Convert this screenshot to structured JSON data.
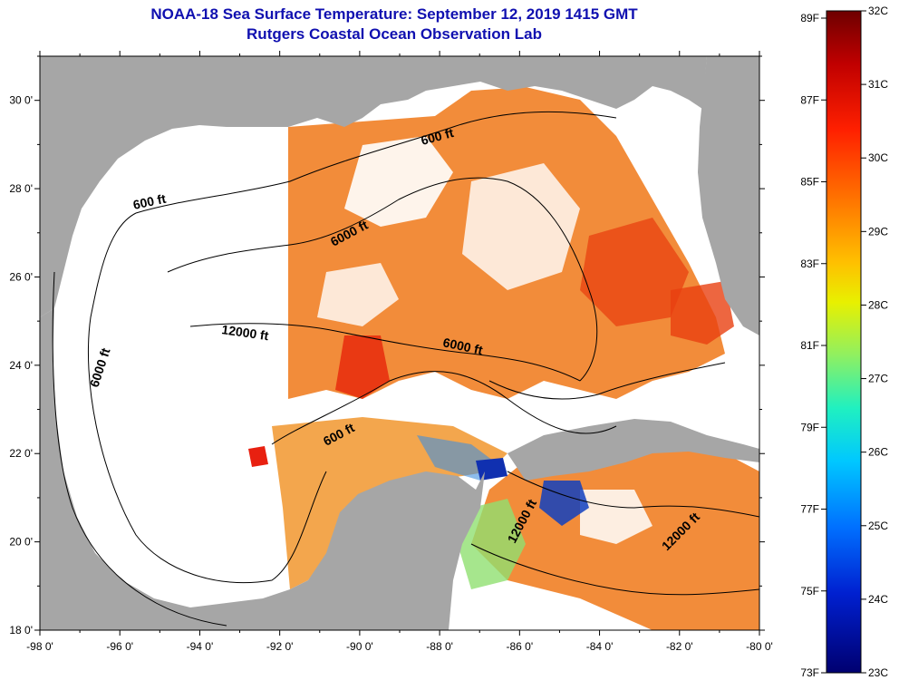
{
  "title": "NOAA-18 Sea Surface Temperature:  September 12, 2019 1415 GMT",
  "subtitle": "Rutgers Coastal Ocean Observation Lab",
  "axes": {
    "lon_ticks": [
      "-98 0'",
      "-96 0'",
      "-94 0'",
      "-92 0'",
      "-90 0'",
      "-88 0'",
      "-86 0'",
      "-84 0'",
      "-82 0'",
      "-80 0'"
    ],
    "lat_ticks": [
      "30 0'",
      "28 0'",
      "26 0'",
      "24 0'",
      "22 0'",
      "20 0'",
      "18 0'"
    ],
    "lon_range": [
      -98,
      -80
    ],
    "lat_range": [
      18,
      31
    ]
  },
  "contour_labels": [
    {
      "text": "600 ft"
    },
    {
      "text": "600 ft"
    },
    {
      "text": "6000 ft"
    },
    {
      "text": "12000 ft"
    },
    {
      "text": "6000 ft"
    },
    {
      "text": "6000 ft"
    },
    {
      "text": "600 ft"
    },
    {
      "text": "12000 ft"
    },
    {
      "text": "12000 ft"
    }
  ],
  "colorbar": {
    "fahrenheit": [
      "89F",
      "87F",
      "85F",
      "83F",
      "81F",
      "79F",
      "77F",
      "75F",
      "73F"
    ],
    "celsius": [
      "32C",
      "31C",
      "30C",
      "29C",
      "28C",
      "27C",
      "26C",
      "25C",
      "24C",
      "23C"
    ],
    "colors": [
      "#6e0000",
      "#c80000",
      "#ff3000",
      "#ff7a00",
      "#ffc000",
      "#e8f000",
      "#90f060",
      "#20f0c0",
      "#00c8ff",
      "#0070ff",
      "#0020d0",
      "#000070"
    ]
  },
  "colors": {
    "land": "#a6a6a6",
    "no_data": "#ffffff",
    "warm": "#f07818",
    "hot": "#e84010",
    "cool": "#1040c0",
    "title": "#1010b0"
  }
}
